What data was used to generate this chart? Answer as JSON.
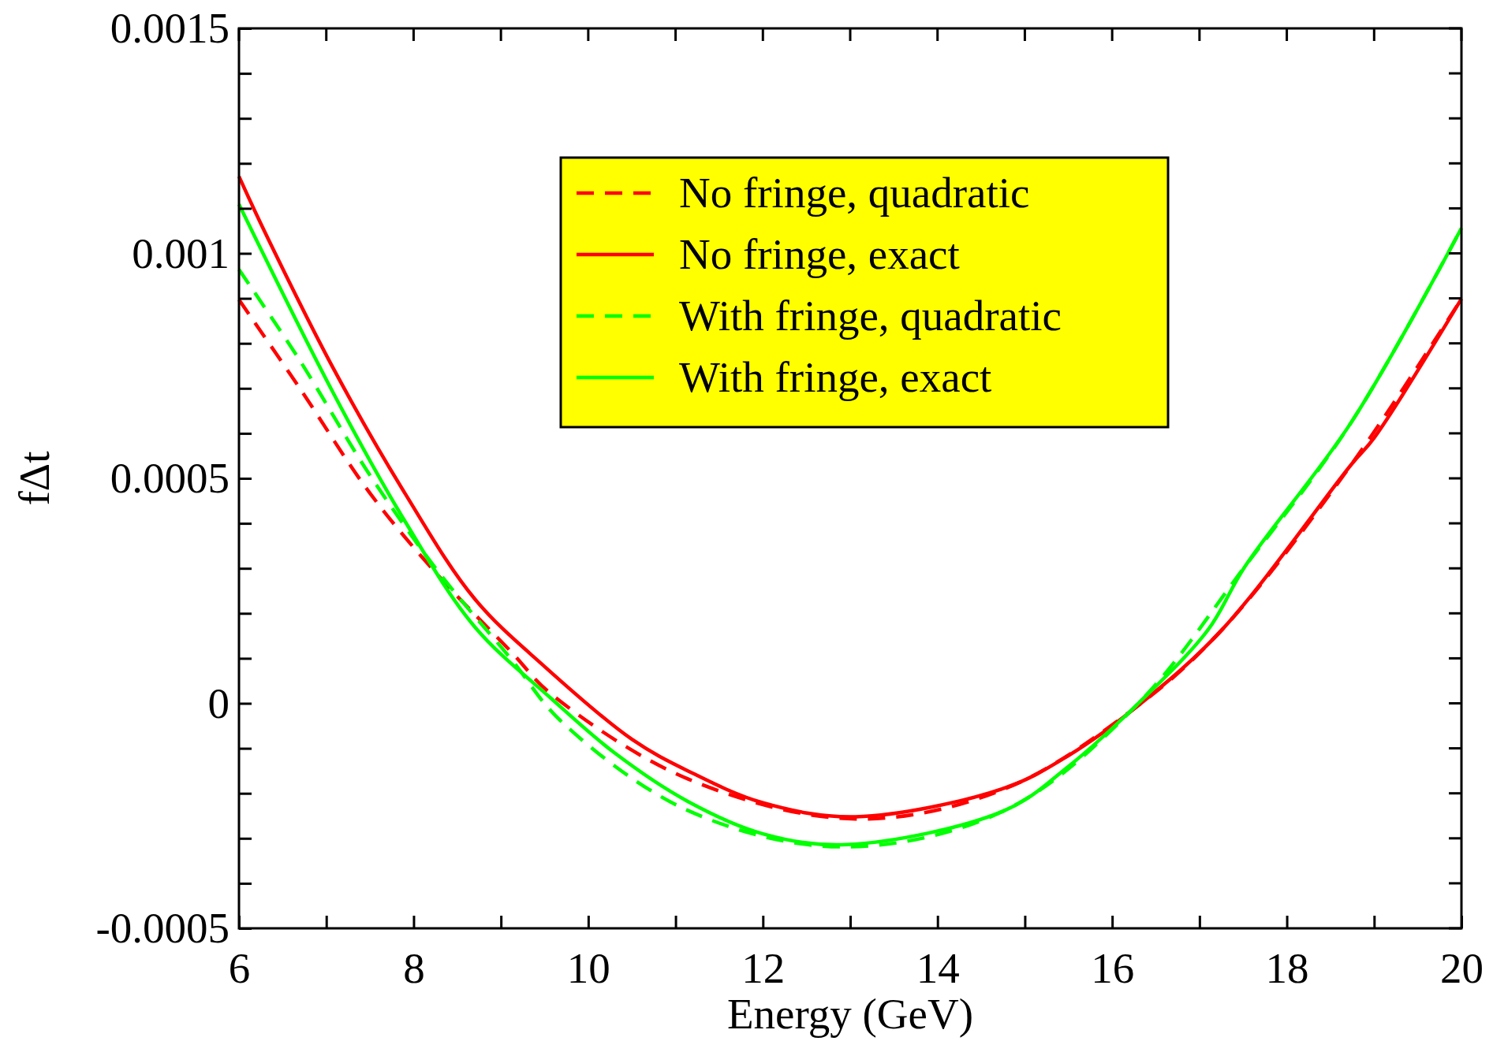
{
  "chart_data": {
    "type": "line",
    "xlabel": "Energy (GeV)",
    "ylabel": "fΔt",
    "xlim": [
      6,
      20
    ],
    "ylim": [
      -0.0005,
      0.0015
    ],
    "xticks": [
      6,
      {
        "value": 7,
        "label": null
      },
      8,
      {
        "value": 9,
        "label": null
      },
      10,
      {
        "value": 11,
        "label": null
      },
      12,
      {
        "value": 13,
        "label": null
      },
      14,
      {
        "value": 15,
        "label": null
      },
      16,
      {
        "value": 17,
        "label": null
      },
      18,
      {
        "value": 19,
        "label": null
      },
      20
    ],
    "yticks": [
      -0.0005,
      {
        "value": -0.0004,
        "label": null
      },
      {
        "value": -0.0003,
        "label": null
      },
      {
        "value": -0.0002,
        "label": null
      },
      {
        "value": -0.0001,
        "label": null
      },
      0,
      {
        "value": 0.0001,
        "label": null
      },
      {
        "value": 0.0002,
        "label": null
      },
      {
        "value": 0.0003,
        "label": null
      },
      {
        "value": 0.0004,
        "label": null
      },
      0.0005,
      {
        "value": 0.0006,
        "label": null
      },
      {
        "value": 0.0007,
        "label": null
      },
      {
        "value": 0.0008,
        "label": null
      },
      {
        "value": 0.0009,
        "label": null
      },
      0.001,
      {
        "value": 0.0011,
        "label": null
      },
      {
        "value": 0.0012,
        "label": null
      },
      {
        "value": 0.0013,
        "label": null
      },
      {
        "value": 0.0014,
        "label": null
      },
      0.0015
    ],
    "grid": false,
    "legend": "top",
    "marker": "none",
    "series": [
      {
        "name": "No fringe, quadratic",
        "color": "#ff0000",
        "line_style": "dashed",
        "x": [
          6,
          6.69,
          7.5,
          8.3,
          9.11,
          9.58,
          11.14,
          13.06,
          14.77,
          16.33,
          17.26,
          18.74,
          20
        ],
        "values": [
          0.000897,
          0.000702,
          0.000467,
          0.00028,
          0.000116,
          2e-05,
          -0.000168,
          -0.000257,
          -0.00019,
          0,
          0.000164,
          0.000531,
          0.000899
        ]
      },
      {
        "name": "No fringe, exact",
        "color": "#ff0000",
        "line_style": "solid",
        "x": [
          6,
          6.29,
          7.09,
          7.9,
          8.7,
          9.51,
          10.5,
          11.14,
          12,
          13.06,
          14.77,
          15.5,
          16.33,
          17.26,
          18.74,
          19,
          20
        ],
        "values": [
          0.001171,
          0.00105,
          0.000741,
          0.000467,
          0.000232,
          8e-05,
          -8e-05,
          -0.00015,
          -0.000221,
          -0.000252,
          -0.000188,
          -0.000116,
          0,
          0.000164,
          0.000531,
          0.00059,
          0.000899
        ]
      },
      {
        "name": "With fringe, quadratic",
        "color": "#00ff00",
        "line_style": "dashed",
        "x": [
          6,
          6.69,
          7.5,
          8.3,
          9.11,
          9.69,
          11.14,
          12.91,
          14.77,
          16.3,
          17.52,
          18.74,
          20
        ],
        "values": [
          0.000964,
          0.000764,
          0.000507,
          0.000288,
          0.0001,
          -4e-05,
          -0.000238,
          -0.000319,
          -0.000238,
          0,
          0.000304,
          0.000625,
          0.001056
        ]
      },
      {
        "name": "With fringe, exact",
        "color": "#00ff00",
        "line_style": "solid",
        "x": [
          6,
          7.09,
          7.9,
          8.7,
          9.58,
          10.3,
          11.14,
          12,
          12.96,
          14.77,
          15.5,
          16.3,
          17.1,
          17.52,
          18.74,
          20
        ],
        "values": [
          0.001109,
          0.000686,
          0.000405,
          0.00017,
          1e-05,
          -0.00011,
          -0.000218,
          -0.00029,
          -0.000314,
          -0.000238,
          -0.00014,
          0,
          0.000164,
          0.000304,
          0.000625,
          0.001056
        ]
      }
    ]
  }
}
